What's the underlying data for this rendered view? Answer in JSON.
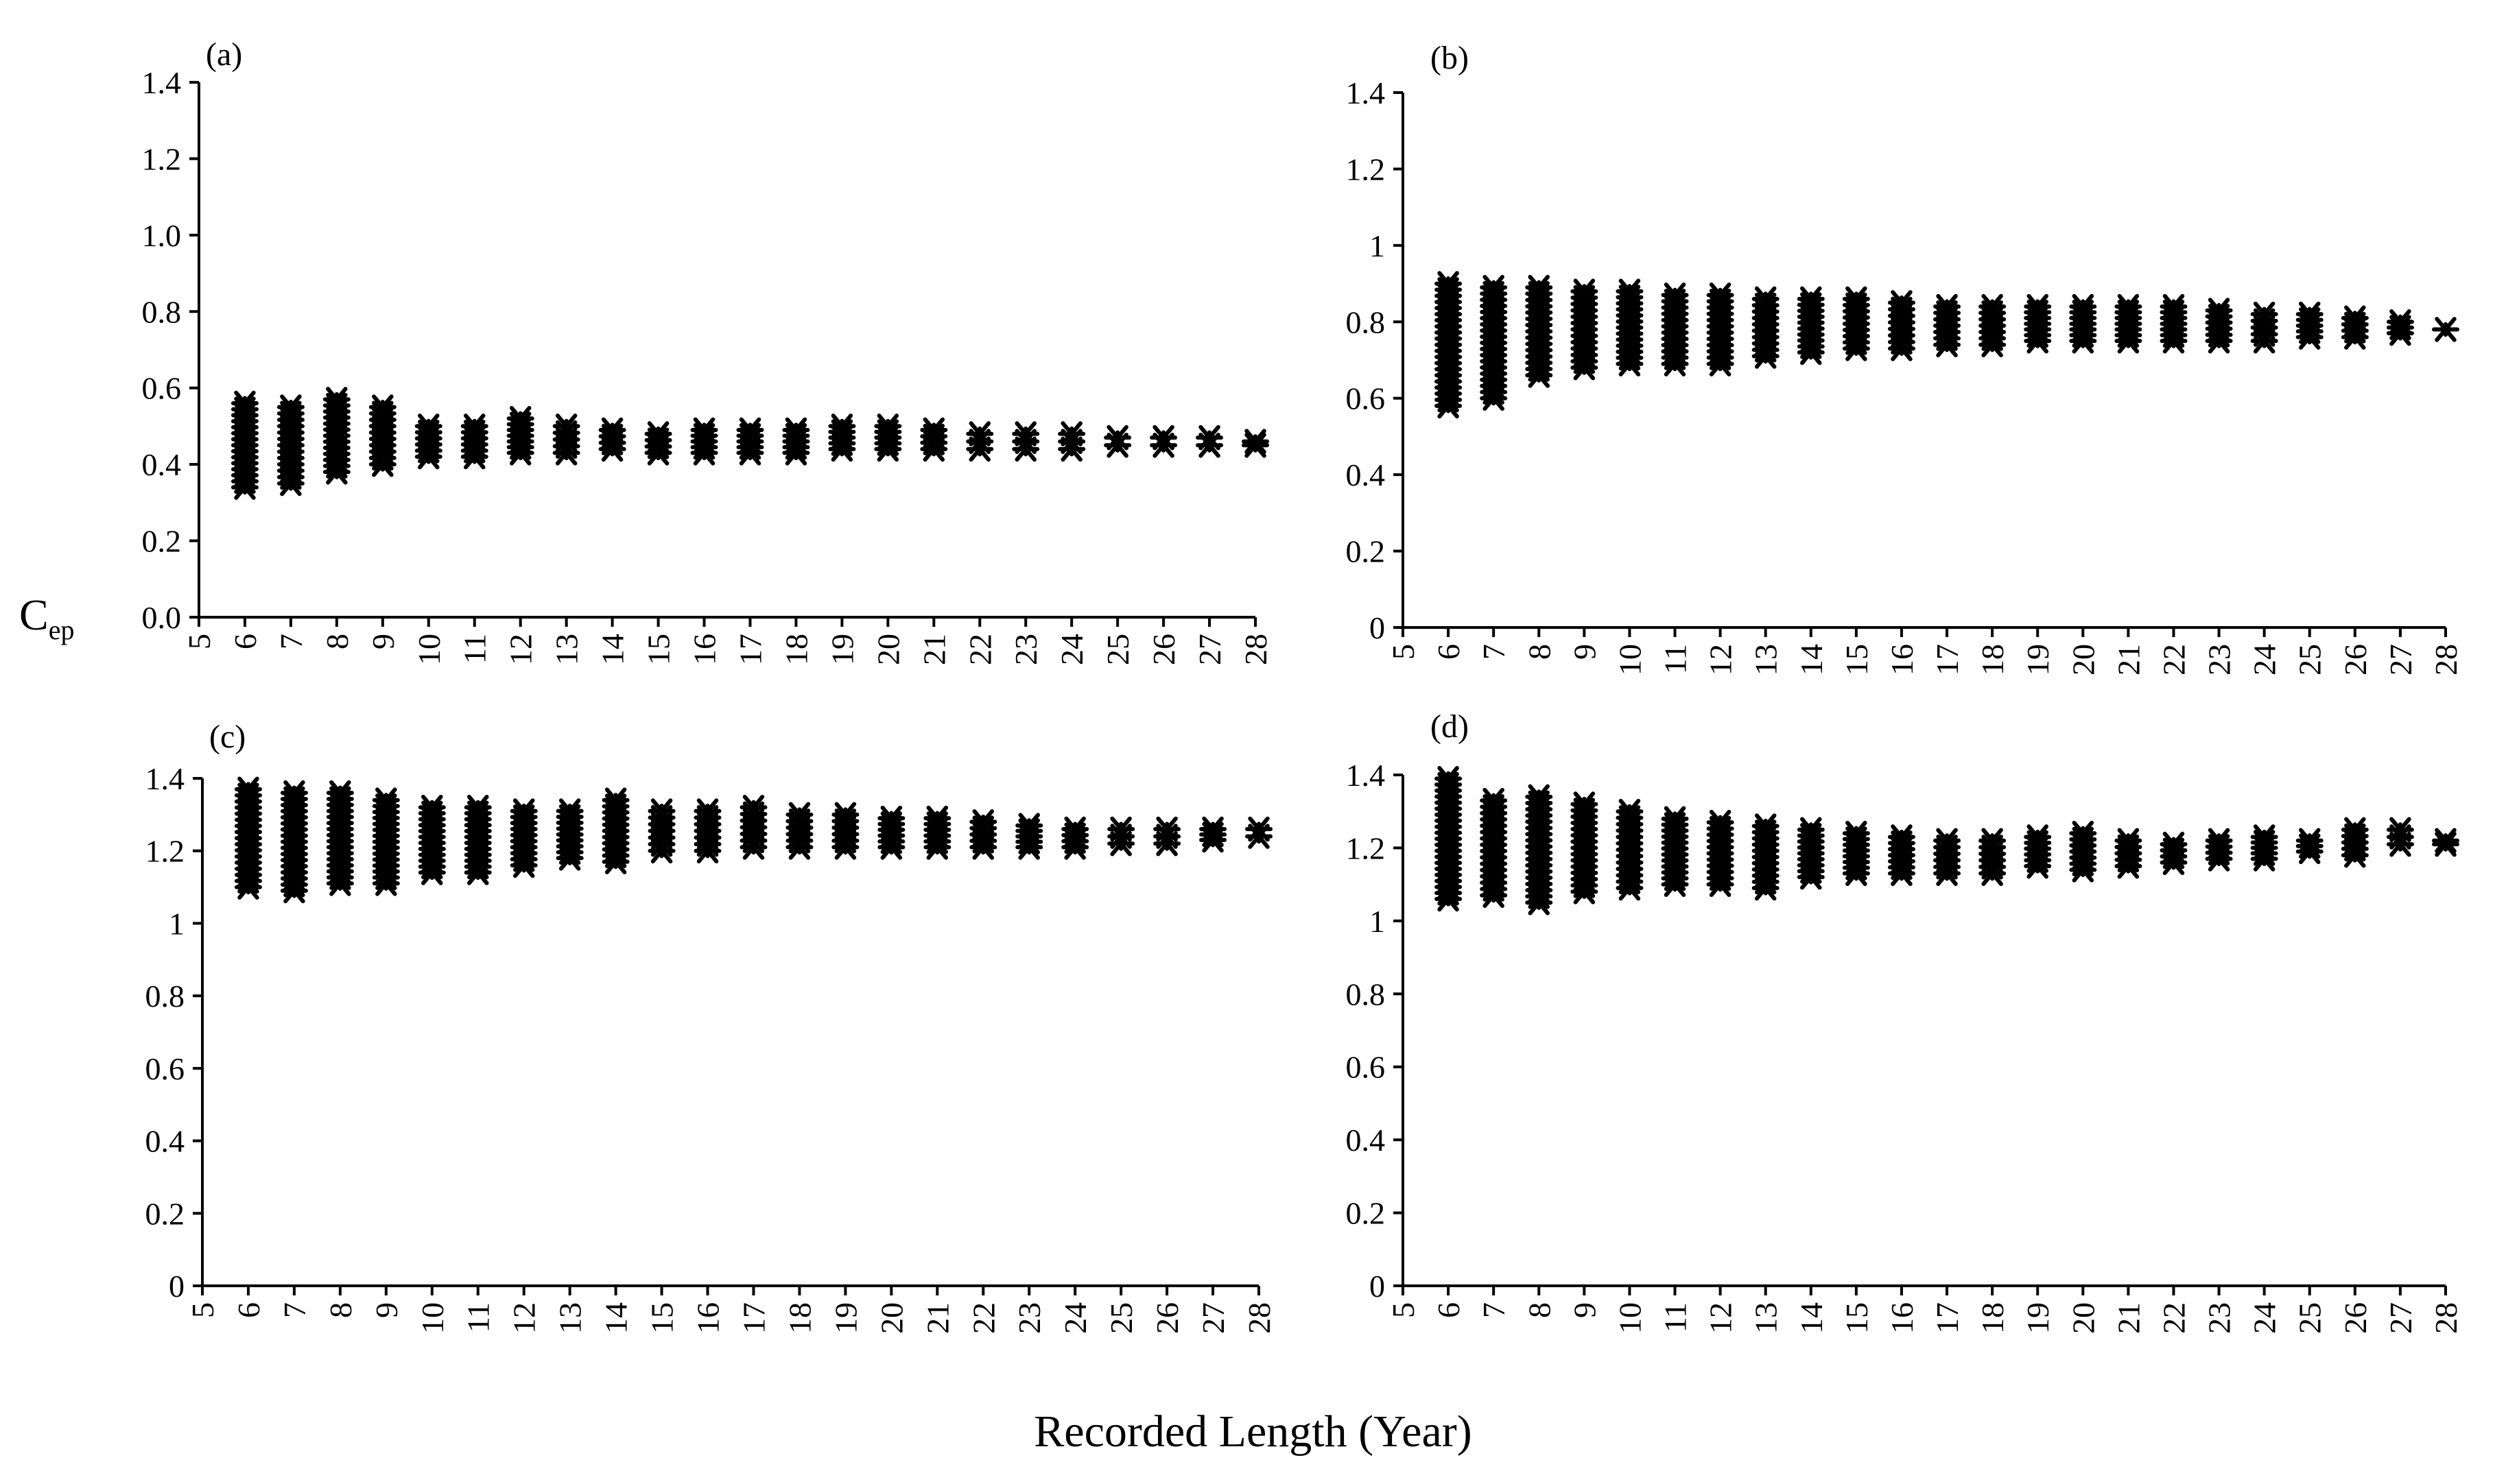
{
  "figure": {
    "ylabel_main": "C",
    "ylabel_sub": "ep",
    "xlabel": "Recorded Length  (Year)",
    "marker": "asterisk",
    "color": "#000000"
  },
  "chart_data": [
    {
      "type": "scatter",
      "panel": "(a)",
      "xlim": [
        5,
        28
      ],
      "ylim": [
        0,
        1.4
      ],
      "xticks": [
        5,
        6,
        7,
        8,
        9,
        10,
        11,
        12,
        13,
        14,
        15,
        16,
        17,
        18,
        19,
        20,
        21,
        22,
        23,
        24,
        25,
        26,
        27,
        28
      ],
      "yticks": [
        "0.0",
        "0.2",
        "0.4",
        "0.6",
        "0.8",
        "1.0",
        "1.2",
        "1.4"
      ],
      "x": [
        6,
        7,
        8,
        9,
        10,
        11,
        12,
        13,
        14,
        15,
        16,
        17,
        18,
        19,
        20,
        21,
        22,
        23,
        24,
        25,
        26,
        27,
        28
      ],
      "y_min": [
        0.34,
        0.35,
        0.38,
        0.4,
        0.42,
        0.42,
        0.43,
        0.43,
        0.44,
        0.43,
        0.43,
        0.43,
        0.43,
        0.44,
        0.44,
        0.44,
        0.44,
        0.44,
        0.44,
        0.45,
        0.45,
        0.45,
        0.45
      ],
      "y_max": [
        0.56,
        0.55,
        0.57,
        0.55,
        0.5,
        0.5,
        0.52,
        0.5,
        0.49,
        0.48,
        0.49,
        0.49,
        0.49,
        0.5,
        0.5,
        0.49,
        0.48,
        0.48,
        0.48,
        0.47,
        0.47,
        0.47,
        0.46
      ],
      "grid": false,
      "legend": "none"
    },
    {
      "type": "scatter",
      "panel": "(b)",
      "xlim": [
        5,
        28
      ],
      "ylim": [
        0,
        1.4
      ],
      "xticks": [
        5,
        6,
        7,
        8,
        9,
        10,
        11,
        12,
        13,
        14,
        15,
        16,
        17,
        18,
        19,
        20,
        21,
        22,
        23,
        24,
        25,
        26,
        27,
        28
      ],
      "yticks": [
        "0",
        "0.2",
        "0.4",
        "0.6",
        "0.8",
        "1",
        "1.2",
        "1.4"
      ],
      "x": [
        6,
        7,
        8,
        9,
        10,
        11,
        12,
        13,
        14,
        15,
        16,
        17,
        18,
        19,
        20,
        21,
        22,
        23,
        24,
        25,
        26,
        27,
        28
      ],
      "y_min": [
        0.58,
        0.6,
        0.66,
        0.68,
        0.69,
        0.69,
        0.69,
        0.71,
        0.72,
        0.73,
        0.73,
        0.74,
        0.74,
        0.75,
        0.75,
        0.75,
        0.75,
        0.75,
        0.75,
        0.76,
        0.76,
        0.77,
        0.78
      ],
      "y_max": [
        0.9,
        0.89,
        0.89,
        0.88,
        0.88,
        0.87,
        0.87,
        0.86,
        0.86,
        0.86,
        0.85,
        0.84,
        0.84,
        0.84,
        0.84,
        0.84,
        0.84,
        0.83,
        0.82,
        0.82,
        0.81,
        0.8,
        0.78
      ],
      "grid": false,
      "legend": "none"
    },
    {
      "type": "scatter",
      "panel": "(c)",
      "xlim": [
        5,
        28
      ],
      "ylim": [
        0,
        1.4
      ],
      "xticks": [
        5,
        6,
        7,
        8,
        9,
        10,
        11,
        12,
        13,
        14,
        15,
        16,
        17,
        18,
        19,
        20,
        21,
        22,
        23,
        24,
        25,
        26,
        27,
        28
      ],
      "yticks": [
        "0",
        "0.2",
        "0.4",
        "0.6",
        "0.8",
        "1",
        "1.2",
        "1.4"
      ],
      "x": [
        6,
        7,
        8,
        9,
        10,
        11,
        12,
        13,
        14,
        15,
        16,
        17,
        18,
        19,
        20,
        21,
        22,
        23,
        24,
        25,
        26,
        27,
        28
      ],
      "y_min": [
        1.1,
        1.09,
        1.11,
        1.11,
        1.14,
        1.14,
        1.16,
        1.18,
        1.17,
        1.2,
        1.2,
        1.21,
        1.21,
        1.21,
        1.21,
        1.21,
        1.21,
        1.21,
        1.21,
        1.22,
        1.22,
        1.23,
        1.24
      ],
      "y_max": [
        1.37,
        1.36,
        1.36,
        1.34,
        1.32,
        1.32,
        1.31,
        1.31,
        1.34,
        1.31,
        1.31,
        1.32,
        1.3,
        1.3,
        1.29,
        1.29,
        1.28,
        1.27,
        1.26,
        1.26,
        1.26,
        1.26,
        1.26
      ],
      "grid": false,
      "legend": "none"
    },
    {
      "type": "scatter",
      "panel": "(d)",
      "xlim": [
        5,
        28
      ],
      "ylim": [
        0,
        1.4
      ],
      "xticks": [
        5,
        6,
        7,
        8,
        9,
        10,
        11,
        12,
        13,
        14,
        15,
        16,
        17,
        18,
        19,
        20,
        21,
        22,
        23,
        24,
        25,
        26,
        27,
        28
      ],
      "yticks": [
        "0",
        "0.2",
        "0.4",
        "0.6",
        "0.8",
        "1",
        "1.2",
        "1.4"
      ],
      "x": [
        6,
        7,
        8,
        9,
        10,
        11,
        12,
        13,
        14,
        15,
        16,
        17,
        18,
        19,
        20,
        21,
        22,
        23,
        24,
        25,
        26,
        27,
        28
      ],
      "y_min": [
        1.06,
        1.07,
        1.05,
        1.08,
        1.09,
        1.1,
        1.1,
        1.09,
        1.12,
        1.13,
        1.13,
        1.13,
        1.13,
        1.15,
        1.14,
        1.15,
        1.16,
        1.17,
        1.17,
        1.19,
        1.18,
        1.21,
        1.21
      ],
      "y_max": [
        1.39,
        1.33,
        1.34,
        1.32,
        1.3,
        1.28,
        1.27,
        1.26,
        1.25,
        1.24,
        1.23,
        1.22,
        1.22,
        1.23,
        1.24,
        1.22,
        1.21,
        1.22,
        1.23,
        1.22,
        1.25,
        1.25,
        1.22
      ],
      "grid": false,
      "legend": "none"
    }
  ]
}
